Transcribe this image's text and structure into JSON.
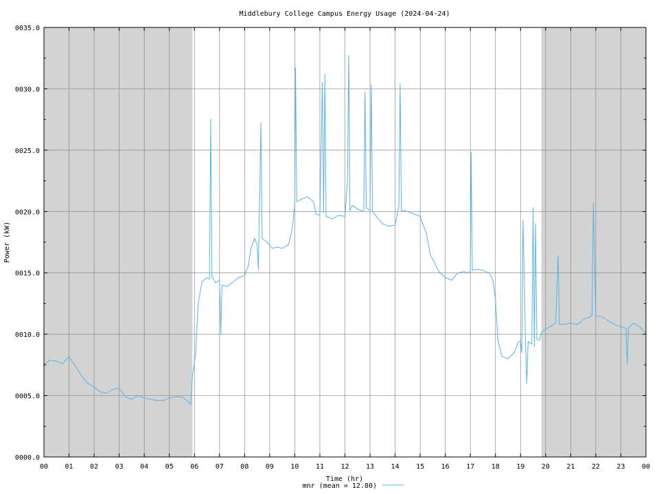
{
  "chart_data": {
    "type": "line",
    "title": "Middlebury College Campus Energy Usage (2024-04-24)",
    "xlabel": "Time (hr)",
    "ylabel": "Power (kW)",
    "xlim": [
      0,
      24
    ],
    "ylim": [
      0,
      35
    ],
    "x_ticks": [
      "00",
      "01",
      "02",
      "03",
      "04",
      "05",
      "06",
      "07",
      "08",
      "09",
      "10",
      "11",
      "12",
      "13",
      "14",
      "15",
      "16",
      "17",
      "18",
      "19",
      "20",
      "21",
      "22",
      "23",
      "00"
    ],
    "y_ticks": [
      "0000.0",
      "0005.0",
      "0010.0",
      "0015.0",
      "0020.0",
      "0025.0",
      "0030.0",
      "0035.0"
    ],
    "shaded_ranges": [
      [
        0,
        5.92
      ],
      [
        19.83,
        24
      ]
    ],
    "grid": true,
    "legend": "bottom-center",
    "series": [
      {
        "name": "mnr",
        "legend_label": "mnr (mean = 12.80)",
        "color": "#56b4e9",
        "points": [
          [
            0.0,
            7.5
          ],
          [
            0.25,
            7.9
          ],
          [
            0.5,
            7.8
          ],
          [
            0.75,
            7.6
          ],
          [
            1.0,
            8.2
          ],
          [
            1.25,
            7.4
          ],
          [
            1.5,
            6.6
          ],
          [
            1.75,
            6.0
          ],
          [
            2.0,
            5.7
          ],
          [
            2.25,
            5.3
          ],
          [
            2.5,
            5.2
          ],
          [
            2.75,
            5.5
          ],
          [
            3.0,
            5.6
          ],
          [
            3.25,
            4.9
          ],
          [
            3.5,
            4.7
          ],
          [
            3.75,
            5.0
          ],
          [
            4.0,
            4.8
          ],
          [
            4.25,
            4.7
          ],
          [
            4.5,
            4.6
          ],
          [
            4.75,
            4.6
          ],
          [
            5.0,
            4.8
          ],
          [
            5.25,
            4.9
          ],
          [
            5.5,
            4.9
          ],
          [
            5.75,
            4.5
          ],
          [
            5.85,
            4.3
          ],
          [
            5.92,
            6.5
          ],
          [
            6.05,
            8.5
          ],
          [
            6.15,
            12.5
          ],
          [
            6.3,
            14.3
          ],
          [
            6.5,
            14.6
          ],
          [
            6.6,
            14.5
          ],
          [
            6.65,
            27.5
          ],
          [
            6.7,
            14.7
          ],
          [
            6.85,
            14.2
          ],
          [
            7.0,
            14.4
          ],
          [
            7.05,
            10.0
          ],
          [
            7.1,
            14.0
          ],
          [
            7.3,
            13.9
          ],
          [
            7.5,
            14.2
          ],
          [
            7.75,
            14.6
          ],
          [
            8.0,
            14.8
          ],
          [
            8.15,
            15.6
          ],
          [
            8.25,
            17.0
          ],
          [
            8.4,
            17.8
          ],
          [
            8.5,
            17.3
          ],
          [
            8.55,
            15.3
          ],
          [
            8.65,
            27.2
          ],
          [
            8.7,
            17.8
          ],
          [
            8.9,
            17.5
          ],
          [
            9.1,
            17.0
          ],
          [
            9.3,
            17.1
          ],
          [
            9.5,
            17.0
          ],
          [
            9.75,
            17.3
          ],
          [
            9.9,
            18.6
          ],
          [
            10.0,
            20.6
          ],
          [
            10.03,
            31.7
          ],
          [
            10.08,
            20.8
          ],
          [
            10.25,
            21.0
          ],
          [
            10.5,
            21.2
          ],
          [
            10.75,
            20.8
          ],
          [
            10.85,
            19.8
          ],
          [
            11.0,
            19.7
          ],
          [
            11.1,
            30.5
          ],
          [
            11.15,
            19.9
          ],
          [
            11.2,
            31.2
          ],
          [
            11.25,
            19.6
          ],
          [
            11.5,
            19.4
          ],
          [
            11.75,
            19.7
          ],
          [
            12.0,
            19.6
          ],
          [
            12.1,
            22.5
          ],
          [
            12.15,
            32.7
          ],
          [
            12.2,
            20.1
          ],
          [
            12.3,
            20.5
          ],
          [
            12.5,
            20.2
          ],
          [
            12.75,
            20.0
          ],
          [
            12.8,
            29.7
          ],
          [
            12.85,
            20.3
          ],
          [
            13.0,
            20.1
          ],
          [
            13.05,
            30.3
          ],
          [
            13.1,
            20.0
          ],
          [
            13.25,
            19.6
          ],
          [
            13.5,
            19.0
          ],
          [
            13.75,
            18.8
          ],
          [
            14.0,
            18.9
          ],
          [
            14.15,
            20.4
          ],
          [
            14.2,
            30.4
          ],
          [
            14.25,
            20.1
          ],
          [
            14.5,
            20.0
          ],
          [
            14.75,
            19.8
          ],
          [
            15.0,
            19.6
          ],
          [
            15.1,
            19.0
          ],
          [
            15.25,
            18.2
          ],
          [
            15.4,
            16.5
          ],
          [
            15.6,
            15.7
          ],
          [
            15.75,
            15.1
          ],
          [
            15.9,
            14.8
          ],
          [
            16.0,
            14.6
          ],
          [
            16.25,
            14.4
          ],
          [
            16.5,
            15.0
          ],
          [
            16.75,
            15.1
          ],
          [
            16.9,
            15.0
          ],
          [
            17.0,
            15.1
          ],
          [
            17.03,
            24.8
          ],
          [
            17.08,
            15.2
          ],
          [
            17.25,
            15.3
          ],
          [
            17.5,
            15.2
          ],
          [
            17.75,
            15.0
          ],
          [
            17.9,
            14.4
          ],
          [
            18.0,
            12.8
          ],
          [
            18.1,
            9.5
          ],
          [
            18.25,
            8.2
          ],
          [
            18.5,
            8.0
          ],
          [
            18.75,
            8.5
          ],
          [
            18.9,
            9.3
          ],
          [
            19.0,
            9.5
          ],
          [
            19.05,
            8.5
          ],
          [
            19.1,
            19.3
          ],
          [
            19.2,
            9.2
          ],
          [
            19.25,
            6.0
          ],
          [
            19.3,
            9.4
          ],
          [
            19.45,
            9.2
          ],
          [
            19.5,
            20.3
          ],
          [
            19.55,
            9.0
          ],
          [
            19.6,
            19.0
          ],
          [
            19.65,
            9.6
          ],
          [
            19.75,
            9.5
          ],
          [
            19.85,
            10.2
          ],
          [
            20.0,
            10.4
          ],
          [
            20.25,
            10.7
          ],
          [
            20.4,
            10.9
          ],
          [
            20.5,
            16.4
          ],
          [
            20.55,
            10.8
          ],
          [
            20.75,
            10.8
          ],
          [
            21.0,
            10.9
          ],
          [
            21.25,
            10.8
          ],
          [
            21.4,
            11.0
          ],
          [
            21.5,
            11.2
          ],
          [
            21.75,
            11.4
          ],
          [
            21.85,
            11.6
          ],
          [
            21.9,
            20.7
          ],
          [
            22.0,
            11.5
          ],
          [
            22.25,
            11.4
          ],
          [
            22.5,
            11.1
          ],
          [
            22.75,
            10.8
          ],
          [
            23.0,
            10.6
          ],
          [
            23.2,
            10.5
          ],
          [
            23.25,
            7.6
          ],
          [
            23.3,
            10.5
          ],
          [
            23.5,
            10.9
          ],
          [
            23.75,
            10.6
          ],
          [
            24.0,
            10.1
          ]
        ]
      }
    ]
  }
}
